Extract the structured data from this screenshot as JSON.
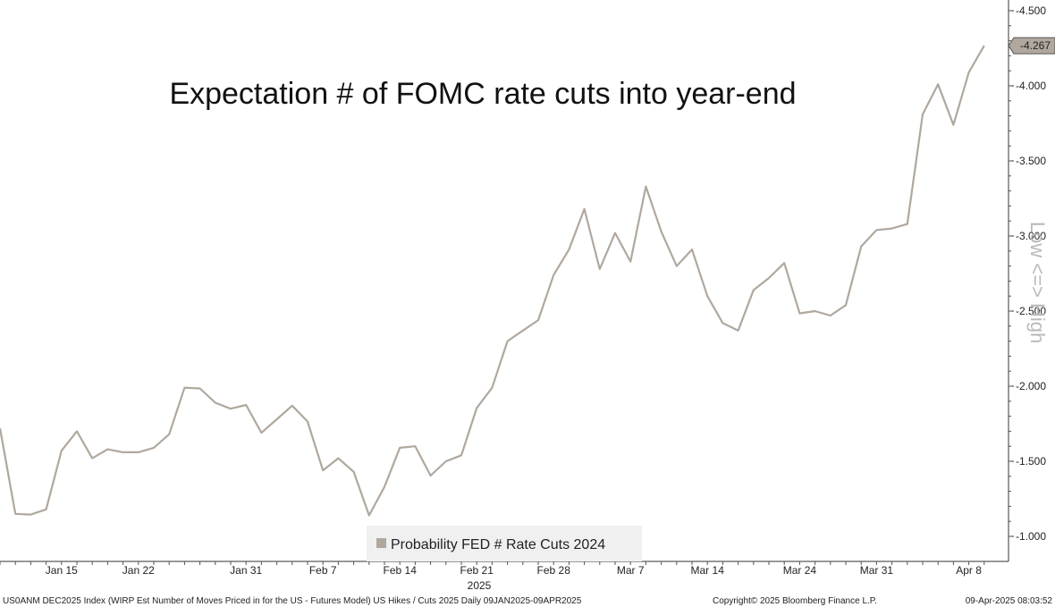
{
  "chart_data": {
    "type": "line",
    "title": "Expectation # of FOMC rate cuts into year-end",
    "ylabel": "Low <=> High",
    "y_axis_inverted": true,
    "ylim": [
      -4.5,
      -0.85
    ],
    "yticks": [
      "-4.500",
      "-4.000",
      "-3.500",
      "-3.000",
      "-2.500",
      "-2.000",
      "-1.500",
      "-1.000"
    ],
    "ytick_values": [
      -4.5,
      -4.0,
      -3.5,
      -3.0,
      -2.5,
      -2.0,
      -1.5,
      -1.0
    ],
    "xticks": [
      "Jan 15",
      "Jan 22",
      "Jan 31",
      "Feb 7",
      "Feb 14",
      "Feb 21",
      "Feb 28",
      "Mar 7",
      "Mar 14",
      "Mar 24",
      "Mar 31",
      "Apr 8"
    ],
    "xtick_indices": [
      4,
      9,
      16,
      21,
      26,
      31,
      36,
      41,
      46,
      52,
      57,
      63
    ],
    "year_label": "2025",
    "last_value_label": "-4.267",
    "line_color": "#b0a89e",
    "legend_position": "bottom-center",
    "grid": false,
    "series": [
      {
        "name": "Probability FED # Rate Cuts 2024",
        "color": "#b0a89e",
        "values": [
          -1.72,
          -1.15,
          -1.145,
          -1.18,
          -1.57,
          -1.7,
          -1.52,
          -1.58,
          -1.56,
          -1.56,
          -1.59,
          -1.68,
          -1.99,
          -1.985,
          -1.89,
          -1.85,
          -1.875,
          -1.69,
          -1.78,
          -1.87,
          -1.765,
          -1.44,
          -1.52,
          -1.43,
          -1.14,
          -1.33,
          -1.59,
          -1.6,
          -1.405,
          -1.5,
          -1.54,
          -1.855,
          -1.99,
          -2.3,
          -2.37,
          -2.44,
          -2.74,
          -2.91,
          -3.18,
          -2.78,
          -3.02,
          -2.83,
          -3.33,
          -3.03,
          -2.8,
          -2.91,
          -2.6,
          -2.42,
          -2.37,
          -2.64,
          -2.72,
          -2.82,
          -2.485,
          -2.5,
          -2.47,
          -2.54,
          -2.93,
          -3.04,
          -3.05,
          -3.08,
          -3.81,
          -4.01,
          -3.74,
          -4.09,
          -4.267
        ]
      }
    ]
  },
  "footer": {
    "left": "US0ANM DEC2025 Index (WIRP Est Number of Moves Priced in for the US - Futures Model) US Hikes / Cuts 2025  Daily 09JAN2025-09APR2025",
    "center": "Copyright© 2025 Bloomberg Finance L.P.",
    "right": "09-Apr-2025 08:03:52"
  }
}
